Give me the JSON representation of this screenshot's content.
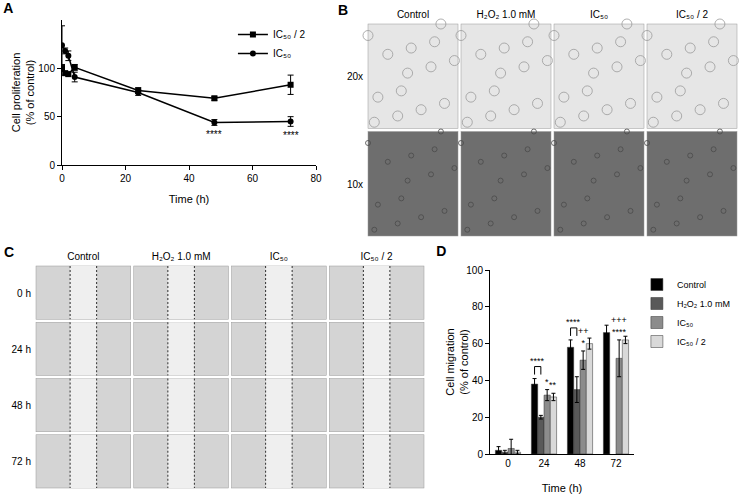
{
  "chart_data": [
    {
      "type": "line",
      "title": "A",
      "x": [
        0,
        1,
        2,
        4,
        24,
        48,
        72
      ],
      "series": [
        {
          "name": "IC₅₀ / 2",
          "color": "#000000",
          "marker": "square",
          "values": [
            100,
            95,
            94,
            101,
            77,
            69,
            83
          ],
          "errors": [
            3,
            2,
            2,
            3,
            3,
            2,
            10
          ]
        },
        {
          "name": "IC₅₀",
          "color": "#000000",
          "marker": "circle",
          "values": [
            124,
            118,
            113,
            91,
            75,
            44,
            45
          ],
          "errors": [
            20,
            3,
            5,
            5,
            3,
            3,
            5
          ]
        }
      ],
      "x_label": "Time (h)",
      "y_label": [
        "Cell proliferation",
        "(% of control)"
      ],
      "xlim": [
        0,
        80
      ],
      "xticks": [
        0,
        20,
        40,
        60,
        80
      ],
      "ylim": [
        0,
        150
      ],
      "yticks": [
        0,
        50,
        100
      ],
      "grid": false,
      "legend": "top-right",
      "annotations": [
        {
          "text": "****",
          "x": 48,
          "series": "IC₅₀"
        },
        {
          "text": "****",
          "x": 72,
          "series": "IC₅₀"
        }
      ]
    },
    {
      "type": "bar",
      "title": "D",
      "categories": [
        "0",
        "24",
        "48",
        "72"
      ],
      "series": [
        {
          "name": "Control",
          "color": "#000000",
          "values": [
            2,
            38,
            58,
            66
          ],
          "errors": [
            2,
            3,
            4,
            4
          ]
        },
        {
          "name": "H₂O₂ 1.0 mM",
          "color": "#595959",
          "values": [
            1,
            20,
            35,
            null
          ],
          "errors": [
            1,
            1,
            7,
            null
          ]
        },
        {
          "name": "IC₅₀",
          "color": "#8c8c8c",
          "values": [
            3,
            32,
            51,
            52
          ],
          "errors": [
            5,
            3,
            5,
            10
          ]
        },
        {
          "name": "IC₅₀ / 2",
          "color": "#d9d9d9",
          "values": [
            1,
            31,
            60,
            62
          ],
          "errors": [
            1,
            2,
            3,
            2
          ]
        }
      ],
      "x_label": "Time (h)",
      "y_label": [
        "Cell migration",
        "(% of control)"
      ],
      "ylim": [
        0,
        100
      ],
      "yticks": [
        0,
        20,
        40,
        60,
        80,
        100
      ],
      "grid": false,
      "legend": "right",
      "brackets": [
        {
          "text": "****",
          "category": "24",
          "series": [
            "Control",
            "H₂O₂ 1.0 mM"
          ]
        },
        {
          "text": "****",
          "category": "48",
          "series": [
            "Control",
            "H₂O₂ 1.0 mM"
          ]
        }
      ],
      "annotations": [
        {
          "text": [
            "*"
          ],
          "category": "24",
          "series": "IC₅₀"
        },
        {
          "text": [
            "**"
          ],
          "category": "24",
          "series": "IC₅₀ / 2"
        },
        {
          "text": [
            "++",
            "*"
          ],
          "category": "48",
          "series": "IC₅₀"
        },
        {
          "text": [
            "+++",
            "****"
          ],
          "category": "72",
          "series": "IC₅₀"
        }
      ]
    }
  ],
  "image_panels": [
    {
      "label": "B",
      "columns": [
        "Control",
        "H₂O₂ 1.0 mM",
        "IC₅₀",
        "IC₅₀ / 2"
      ],
      "rows": [
        "20x",
        "10x"
      ]
    },
    {
      "label": "C",
      "columns": [
        "Control",
        "H₂O₂ 1.0 mM",
        "IC₅₀",
        "IC₅₀ / 2"
      ],
      "rows": [
        "0 h",
        "24 h",
        "48 h",
        "72 h"
      ]
    }
  ]
}
